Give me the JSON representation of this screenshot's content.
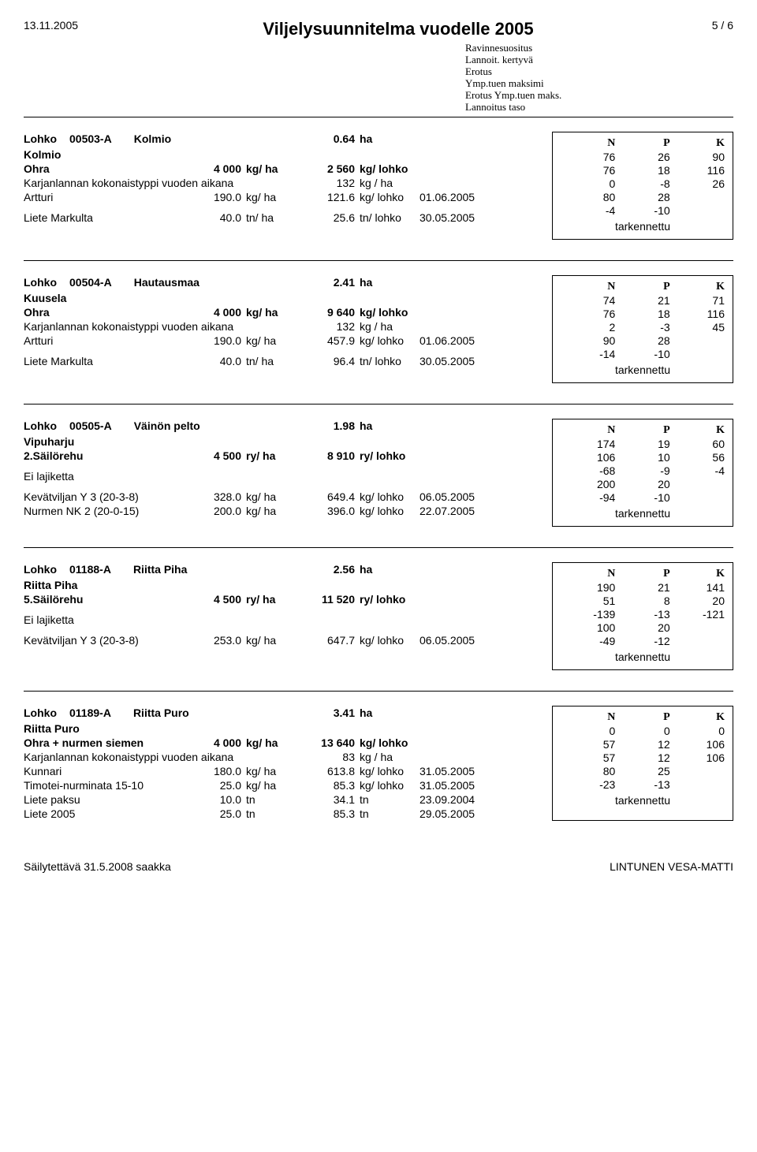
{
  "header": {
    "date": "13.11.2005",
    "title": "Viljelysuunnitelma vuodelle 2005",
    "page": "5 / 6"
  },
  "legend": [
    "Ravinnesuositus",
    "Lannoit. kertyvä",
    "Erotus",
    "Ymp.tuen maksimi",
    "Erotus Ymp.tuen maks.",
    "Lannoitus taso"
  ],
  "tark_label": "tarkennettu",
  "blocks": [
    {
      "lohko_kw": "Lohko",
      "code": "00503-A",
      "name": "Kolmio",
      "area": "0.64",
      "area_unit": "ha",
      "subname": "Kolmio",
      "rows": [
        {
          "c1": "Ohra",
          "c2": "4 000",
          "c3": "kg/ ha",
          "c4": "2 560",
          "c5": "kg/ lohko",
          "c6": "",
          "bold": true
        },
        {
          "c1": "Karjanlannan kokonaistyppi vuoden aikana",
          "c2": "",
          "c3": "",
          "c4": "132",
          "c5": "kg / ha",
          "c6": "",
          "span": true
        },
        {
          "c1": "Artturi",
          "c2": "190.0",
          "c3": "kg/ ha",
          "c4": "121.6",
          "c5": "kg/ lohko",
          "c6": "01.06.2005"
        },
        {
          "spacer": true
        },
        {
          "c1": "Liete Markulta",
          "c2": "40.0",
          "c3": "tn/ ha",
          "c4": "25.6",
          "c5": "tn/ lohko",
          "c6": "30.05.2005"
        }
      ],
      "npk": {
        "hdr": [
          "N",
          "P",
          "K"
        ],
        "vals": [
          [
            "76",
            "26",
            "90"
          ],
          [
            "76",
            "18",
            "116"
          ],
          [
            "0",
            "-8",
            "26"
          ],
          [
            "80",
            "28",
            ""
          ],
          [
            "-4",
            "-10",
            ""
          ]
        ]
      }
    },
    {
      "lohko_kw": "Lohko",
      "code": "00504-A",
      "name": "Hautausmaa",
      "area": "2.41",
      "area_unit": "ha",
      "subname": "Kuusela",
      "rows": [
        {
          "c1": "Ohra",
          "c2": "4 000",
          "c3": "kg/ ha",
          "c4": "9 640",
          "c5": "kg/ lohko",
          "c6": "",
          "bold": true
        },
        {
          "c1": "Karjanlannan kokonaistyppi vuoden aikana",
          "c2": "",
          "c3": "",
          "c4": "132",
          "c5": "kg / ha",
          "c6": "",
          "span": true
        },
        {
          "c1": "Artturi",
          "c2": "190.0",
          "c3": "kg/ ha",
          "c4": "457.9",
          "c5": "kg/ lohko",
          "c6": "01.06.2005"
        },
        {
          "spacer": true
        },
        {
          "c1": "Liete Markulta",
          "c2": "40.0",
          "c3": "tn/ ha",
          "c4": "96.4",
          "c5": "tn/ lohko",
          "c6": "30.05.2005"
        }
      ],
      "npk": {
        "hdr": [
          "N",
          "P",
          "K"
        ],
        "vals": [
          [
            "74",
            "21",
            "71"
          ],
          [
            "76",
            "18",
            "116"
          ],
          [
            "2",
            "-3",
            "45"
          ],
          [
            "90",
            "28",
            ""
          ],
          [
            "-14",
            "-10",
            ""
          ]
        ]
      }
    },
    {
      "lohko_kw": "Lohko",
      "code": "00505-A",
      "name": "Väinön pelto",
      "area": "1.98",
      "area_unit": "ha",
      "subname": "Vipuharju",
      "rows": [
        {
          "c1": "2.Säilörehu",
          "c2": "4 500",
          "c3": "ry/ ha",
          "c4": "8 910",
          "c5": "ry/ lohko",
          "c6": "",
          "bold": true
        },
        {
          "spacer": true
        },
        {
          "c1": "Ei lajiketta",
          "c2": "",
          "c3": "",
          "c4": "",
          "c5": "",
          "c6": ""
        },
        {
          "spacer": true
        },
        {
          "c1": "Kevätviljan Y 3 (20-3-8)",
          "c2": "328.0",
          "c3": "kg/ ha",
          "c4": "649.4",
          "c5": "kg/ lohko",
          "c6": "06.05.2005"
        },
        {
          "c1": "Nurmen NK 2 (20-0-15)",
          "c2": "200.0",
          "c3": "kg/ ha",
          "c4": "396.0",
          "c5": "kg/ lohko",
          "c6": "22.07.2005"
        }
      ],
      "npk": {
        "hdr": [
          "N",
          "P",
          "K"
        ],
        "vals": [
          [
            "174",
            "19",
            "60"
          ],
          [
            "106",
            "10",
            "56"
          ],
          [
            "-68",
            "-9",
            "-4"
          ],
          [
            "200",
            "20",
            ""
          ],
          [
            "-94",
            "-10",
            ""
          ]
        ]
      }
    },
    {
      "lohko_kw": "Lohko",
      "code": "01188-A",
      "name": "Riitta Piha",
      "area": "2.56",
      "area_unit": "ha",
      "subname": "Riitta Piha",
      "rows": [
        {
          "c1": "5.Säilörehu",
          "c2": "4 500",
          "c3": "ry/ ha",
          "c4": "11 520",
          "c5": "ry/ lohko",
          "c6": "",
          "bold": true
        },
        {
          "spacer": true
        },
        {
          "c1": "Ei lajiketta",
          "c2": "",
          "c3": "",
          "c4": "",
          "c5": "",
          "c6": ""
        },
        {
          "spacer": true
        },
        {
          "c1": "Kevätviljan Y 3 (20-3-8)",
          "c2": "253.0",
          "c3": "kg/ ha",
          "c4": "647.7",
          "c5": "kg/ lohko",
          "c6": "06.05.2005"
        }
      ],
      "npk": {
        "hdr": [
          "N",
          "P",
          "K"
        ],
        "vals": [
          [
            "190",
            "21",
            "141"
          ],
          [
            "51",
            "8",
            "20"
          ],
          [
            "-139",
            "-13",
            "-121"
          ],
          [
            "100",
            "20",
            ""
          ],
          [
            "-49",
            "-12",
            ""
          ]
        ]
      }
    },
    {
      "lohko_kw": "Lohko",
      "code": "01189-A",
      "name": "Riitta Puro",
      "area": "3.41",
      "area_unit": "ha",
      "subname": "Riitta Puro",
      "rows": [
        {
          "c1": "Ohra + nurmen siemen",
          "c2": "4 000",
          "c3": "kg/ ha",
          "c4": "13 640",
          "c5": "kg/ lohko",
          "c6": "",
          "bold": true
        },
        {
          "c1": "Karjanlannan kokonaistyppi vuoden aikana",
          "c2": "",
          "c3": "",
          "c4": "83",
          "c5": "kg / ha",
          "c6": "",
          "span": true
        },
        {
          "c1": "Kunnari",
          "c2": "180.0",
          "c3": "kg/ ha",
          "c4": "613.8",
          "c5": "kg/ lohko",
          "c6": "31.05.2005"
        },
        {
          "c1": "Timotei-nurminata   15-10",
          "c2": "25.0",
          "c3": "kg/ ha",
          "c4": "85.3",
          "c5": "kg/ lohko",
          "c6": "31.05.2005"
        },
        {
          "c1": "Liete paksu",
          "c2": "10.0",
          "c3": "tn",
          "c4": "34.1",
          "c5": "tn",
          "c6": "23.09.2004"
        },
        {
          "c1": "Liete 2005",
          "c2": "25.0",
          "c3": "tn",
          "c4": "85.3",
          "c5": "tn",
          "c6": "29.05.2005"
        }
      ],
      "npk": {
        "hdr": [
          "N",
          "P",
          "K"
        ],
        "vals": [
          [
            "0",
            "0",
            "0"
          ],
          [
            "57",
            "12",
            "106"
          ],
          [
            "57",
            "12",
            "106"
          ],
          [
            "80",
            "25",
            ""
          ],
          [
            "-23",
            "-13",
            ""
          ]
        ]
      }
    }
  ],
  "footer": {
    "left": "Säilytettävä 31.5.2008 saakka",
    "right": "LINTUNEN VESA-MATTI"
  }
}
